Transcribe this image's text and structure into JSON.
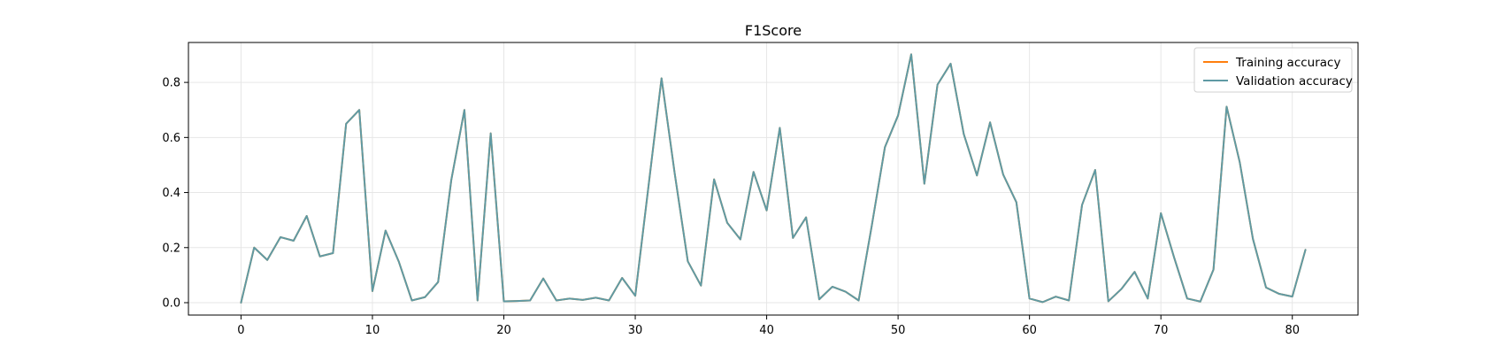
{
  "chart_data": {
    "type": "line",
    "title": "F1Score",
    "xlabel": "",
    "ylabel": "",
    "xlim": [
      -4,
      85
    ],
    "ylim": [
      -0.045,
      0.945
    ],
    "xticks": [
      0,
      10,
      20,
      30,
      40,
      50,
      60,
      70,
      80
    ],
    "yticks": [
      0.0,
      0.2,
      0.4,
      0.6,
      0.8
    ],
    "grid": true,
    "legend_position": "top-right",
    "x": [
      0,
      1,
      2,
      3,
      4,
      5,
      6,
      7,
      8,
      9,
      10,
      11,
      12,
      13,
      14,
      15,
      16,
      17,
      18,
      19,
      20,
      21,
      22,
      23,
      24,
      25,
      26,
      27,
      28,
      29,
      30,
      31,
      32,
      33,
      34,
      35,
      36,
      37,
      38,
      39,
      40,
      41,
      42,
      43,
      44,
      45,
      46,
      47,
      48,
      49,
      50,
      51,
      52,
      53,
      54,
      55,
      56,
      57,
      58,
      59,
      60,
      61,
      62,
      63,
      64,
      65,
      66,
      67,
      68,
      69,
      70,
      71,
      72,
      73,
      74,
      75,
      76,
      77,
      78,
      79,
      80,
      81
    ],
    "series": [
      {
        "name": "Training accuracy",
        "color": "#ff7f0e",
        "values": [
          0.0,
          0.2,
          0.155,
          0.238,
          0.225,
          0.315,
          0.168,
          0.18,
          0.65,
          0.7,
          0.042,
          0.262,
          0.15,
          0.008,
          0.02,
          0.075,
          0.445,
          0.7,
          0.008,
          0.615,
          0.005,
          0.006,
          0.008,
          0.088,
          0.008,
          0.015,
          0.01,
          0.018,
          0.008,
          0.09,
          0.025,
          0.42,
          0.815,
          0.47,
          0.15,
          0.062,
          0.448,
          0.29,
          0.23,
          0.475,
          0.335,
          0.635,
          0.235,
          0.31,
          0.012,
          0.058,
          0.04,
          0.008,
          0.28,
          0.565,
          0.68,
          0.902,
          0.432,
          0.792,
          0.868,
          0.612,
          0.462,
          0.655,
          0.465,
          0.365,
          0.015,
          0.002,
          0.022,
          0.008,
          0.355,
          0.482,
          0.005,
          0.05,
          0.112,
          0.015,
          0.325,
          0.165,
          0.015,
          0.004,
          0.12,
          0.712,
          0.51,
          0.232,
          0.055,
          0.032,
          0.022,
          0.192
        ]
      },
      {
        "name": "Validation accuracy",
        "color": "#5f9aa4",
        "values": [
          0.0,
          0.2,
          0.155,
          0.238,
          0.225,
          0.315,
          0.168,
          0.18,
          0.65,
          0.7,
          0.042,
          0.262,
          0.15,
          0.008,
          0.02,
          0.075,
          0.445,
          0.7,
          0.008,
          0.615,
          0.005,
          0.006,
          0.008,
          0.088,
          0.008,
          0.015,
          0.01,
          0.018,
          0.008,
          0.09,
          0.025,
          0.42,
          0.815,
          0.47,
          0.15,
          0.062,
          0.448,
          0.29,
          0.23,
          0.475,
          0.335,
          0.635,
          0.235,
          0.31,
          0.012,
          0.058,
          0.04,
          0.008,
          0.28,
          0.565,
          0.68,
          0.902,
          0.432,
          0.792,
          0.868,
          0.612,
          0.462,
          0.655,
          0.465,
          0.365,
          0.015,
          0.002,
          0.022,
          0.008,
          0.355,
          0.482,
          0.005,
          0.05,
          0.112,
          0.015,
          0.325,
          0.165,
          0.015,
          0.004,
          0.12,
          0.712,
          0.51,
          0.232,
          0.055,
          0.032,
          0.022,
          0.192
        ]
      }
    ]
  }
}
